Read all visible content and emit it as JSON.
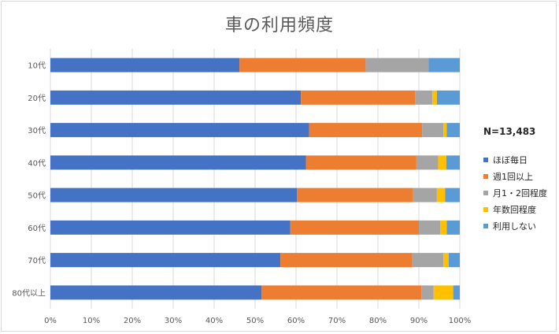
{
  "chart_data": {
    "type": "bar",
    "orientation": "horizontal",
    "stacked": true,
    "title": "車の利用頻度",
    "note": "N=13,483",
    "categories": [
      "10代",
      "20代",
      "30代",
      "40代",
      "50代",
      "60代",
      "70代",
      "80代以上"
    ],
    "x_ticks": [
      "0%",
      "10%",
      "20%",
      "30%",
      "40%",
      "50%",
      "60%",
      "70%",
      "80%",
      "90%",
      "100%"
    ],
    "xlim": [
      0,
      100
    ],
    "grid": true,
    "legend_position": "right",
    "series": [
      {
        "name": "ほぼ毎日",
        "color": "#4472C4",
        "values": [
          46.2,
          61.2,
          63.2,
          62.4,
          60.2,
          58.6,
          56.2,
          51.6
        ]
      },
      {
        "name": "週1回以上",
        "color": "#ED7D31",
        "values": [
          30.8,
          27.9,
          27.6,
          27.0,
          28.4,
          31.4,
          32.2,
          39.0
        ]
      },
      {
        "name": "月1・2回程度",
        "color": "#A5A5A5",
        "values": [
          15.4,
          4.2,
          5.2,
          5.3,
          5.8,
          5.2,
          7.6,
          3.0
        ]
      },
      {
        "name": "年数回程度",
        "color": "#FFC000",
        "values": [
          0.0,
          1.1,
          0.8,
          2.0,
          2.0,
          1.6,
          1.3,
          4.8
        ]
      },
      {
        "name": "利用しない",
        "color": "#5B9BD5",
        "values": [
          7.6,
          5.6,
          3.2,
          3.3,
          3.6,
          3.2,
          2.7,
          1.6
        ]
      }
    ]
  }
}
